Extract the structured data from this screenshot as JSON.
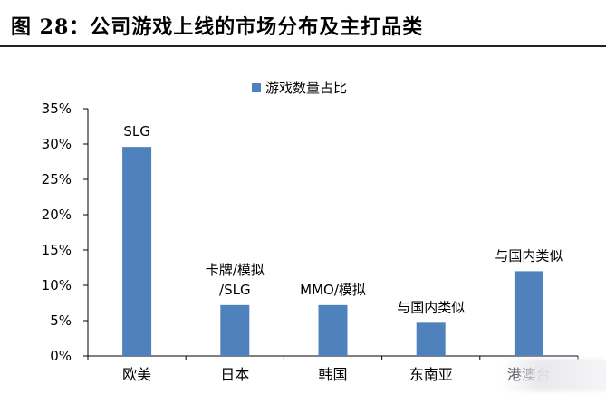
{
  "title": "图 28：公司游戏上线的市场分布及主打品类",
  "chart_data": {
    "type": "bar",
    "categories": [
      "欧美",
      "日本",
      "韩国",
      "东南亚",
      "港澳台"
    ],
    "series": [
      {
        "name": "游戏数量占比",
        "values": [
          29.6,
          7.2,
          7.2,
          4.7,
          12.0
        ]
      }
    ],
    "annotations": [
      [
        "SLG"
      ],
      [
        "卡牌/模拟",
        "/SLG"
      ],
      [
        "MMO/模拟"
      ],
      [
        "与国内类似"
      ],
      [
        "与国内类似"
      ]
    ],
    "yticks": [
      "0%",
      "5%",
      "10%",
      "15%",
      "20%",
      "25%",
      "30%",
      "35%"
    ],
    "ylim": [
      0,
      35
    ],
    "legend_position": "top",
    "color": "#4f81bd"
  }
}
